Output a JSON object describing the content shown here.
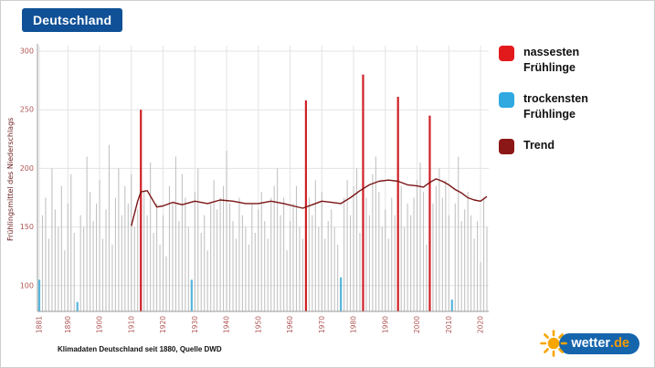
{
  "header": {
    "title": "Deutschland"
  },
  "colors": {
    "badge_bg": "#0f5096",
    "logo_pill": "#1565ad",
    "logo_tld": "#f59b00",
    "logo_sun": "#f7a600",
    "page_bg": "#ffffff"
  },
  "legend": {
    "items": [
      {
        "id": "wettest",
        "label": "nassesten\n Frühlinge",
        "color": "#e31a1c"
      },
      {
        "id": "driest",
        "label": "trockensten\nFrühlinge",
        "color": "#2fa9e0"
      },
      {
        "id": "trend",
        "label": "Trend",
        "color": "#8b1717"
      }
    ]
  },
  "caption": "Klimadaten Deutschland seit 1880, Quelle DWD",
  "logo": {
    "brand": "wetter",
    "tld": ".de"
  },
  "chart_data": {
    "type": "bar",
    "title": "",
    "xlabel": "",
    "ylabel": "Frühlingsmittel des Niederschlags",
    "ylim": [
      78,
      300
    ],
    "yticks": [
      100,
      150,
      200,
      250,
      300
    ],
    "xticks": [
      1881,
      1890,
      1900,
      1910,
      1920,
      1930,
      1940,
      1950,
      1960,
      1970,
      1980,
      1990,
      2000,
      2010,
      2020
    ],
    "grid": true,
    "legend_position": "right",
    "year_start": 1881,
    "year_end": 2022,
    "values": [
      105,
      160,
      175,
      140,
      200,
      165,
      150,
      185,
      130,
      170,
      195,
      145,
      86,
      160,
      150,
      210,
      180,
      155,
      170,
      190,
      140,
      165,
      220,
      135,
      175,
      200,
      160,
      185,
      170,
      195,
      150,
      165,
      250,
      180,
      160,
      205,
      145,
      170,
      135,
      160,
      125,
      185,
      170,
      210,
      155,
      195,
      175,
      150,
      105,
      180,
      200,
      145,
      160,
      130,
      170,
      190,
      165,
      175,
      185,
      215,
      170,
      155,
      140,
      175,
      160,
      150,
      135,
      170,
      145,
      165,
      180,
      155,
      140,
      175,
      185,
      200,
      160,
      175,
      130,
      155,
      170,
      185,
      150,
      140,
      258,
      175,
      160,
      190,
      150,
      180,
      140,
      155,
      165,
      150,
      135,
      107,
      175,
      190,
      160,
      185,
      200,
      145,
      280,
      175,
      160,
      195,
      210,
      180,
      150,
      165,
      140,
      175,
      160,
      261,
      185,
      150,
      170,
      160,
      175,
      190,
      205,
      180,
      135,
      245,
      170,
      185,
      200,
      175,
      190,
      160,
      88,
      170,
      210,
      155,
      165,
      180,
      160,
      140,
      155,
      120,
      175,
      150
    ],
    "wettest_years": [
      1913,
      1965,
      1983,
      1994,
      2004
    ],
    "driest_years": [
      1881,
      1893,
      1929,
      1976,
      2011
    ],
    "trend": {
      "years": [
        1910,
        1912,
        1913,
        1915,
        1918,
        1920,
        1923,
        1926,
        1930,
        1934,
        1938,
        1942,
        1946,
        1950,
        1954,
        1958,
        1961,
        1964,
        1967,
        1970,
        1973,
        1976,
        1979,
        1982,
        1985,
        1988,
        1991,
        1994,
        1997,
        2000,
        2002,
        2004,
        2006,
        2008,
        2010,
        2012,
        2014,
        2016,
        2018,
        2020,
        2022
      ],
      "values": [
        151,
        172,
        180,
        181,
        167,
        168,
        171,
        169,
        172,
        170,
        173,
        172,
        170,
        170,
        172,
        170,
        168,
        166,
        169,
        172,
        171,
        170,
        175,
        181,
        186,
        189,
        190,
        189,
        186,
        185,
        184,
        188,
        191,
        189,
        186,
        182,
        179,
        175,
        173,
        172,
        176
      ]
    },
    "colors": {
      "bar": "#b8b8b8",
      "wettest": "#cf2128",
      "driest": "#55b5dd",
      "trend": "#7a1414",
      "tick_label": "#b05555",
      "grid": "#e3e3e3",
      "axis": "#9a9a9a"
    }
  }
}
